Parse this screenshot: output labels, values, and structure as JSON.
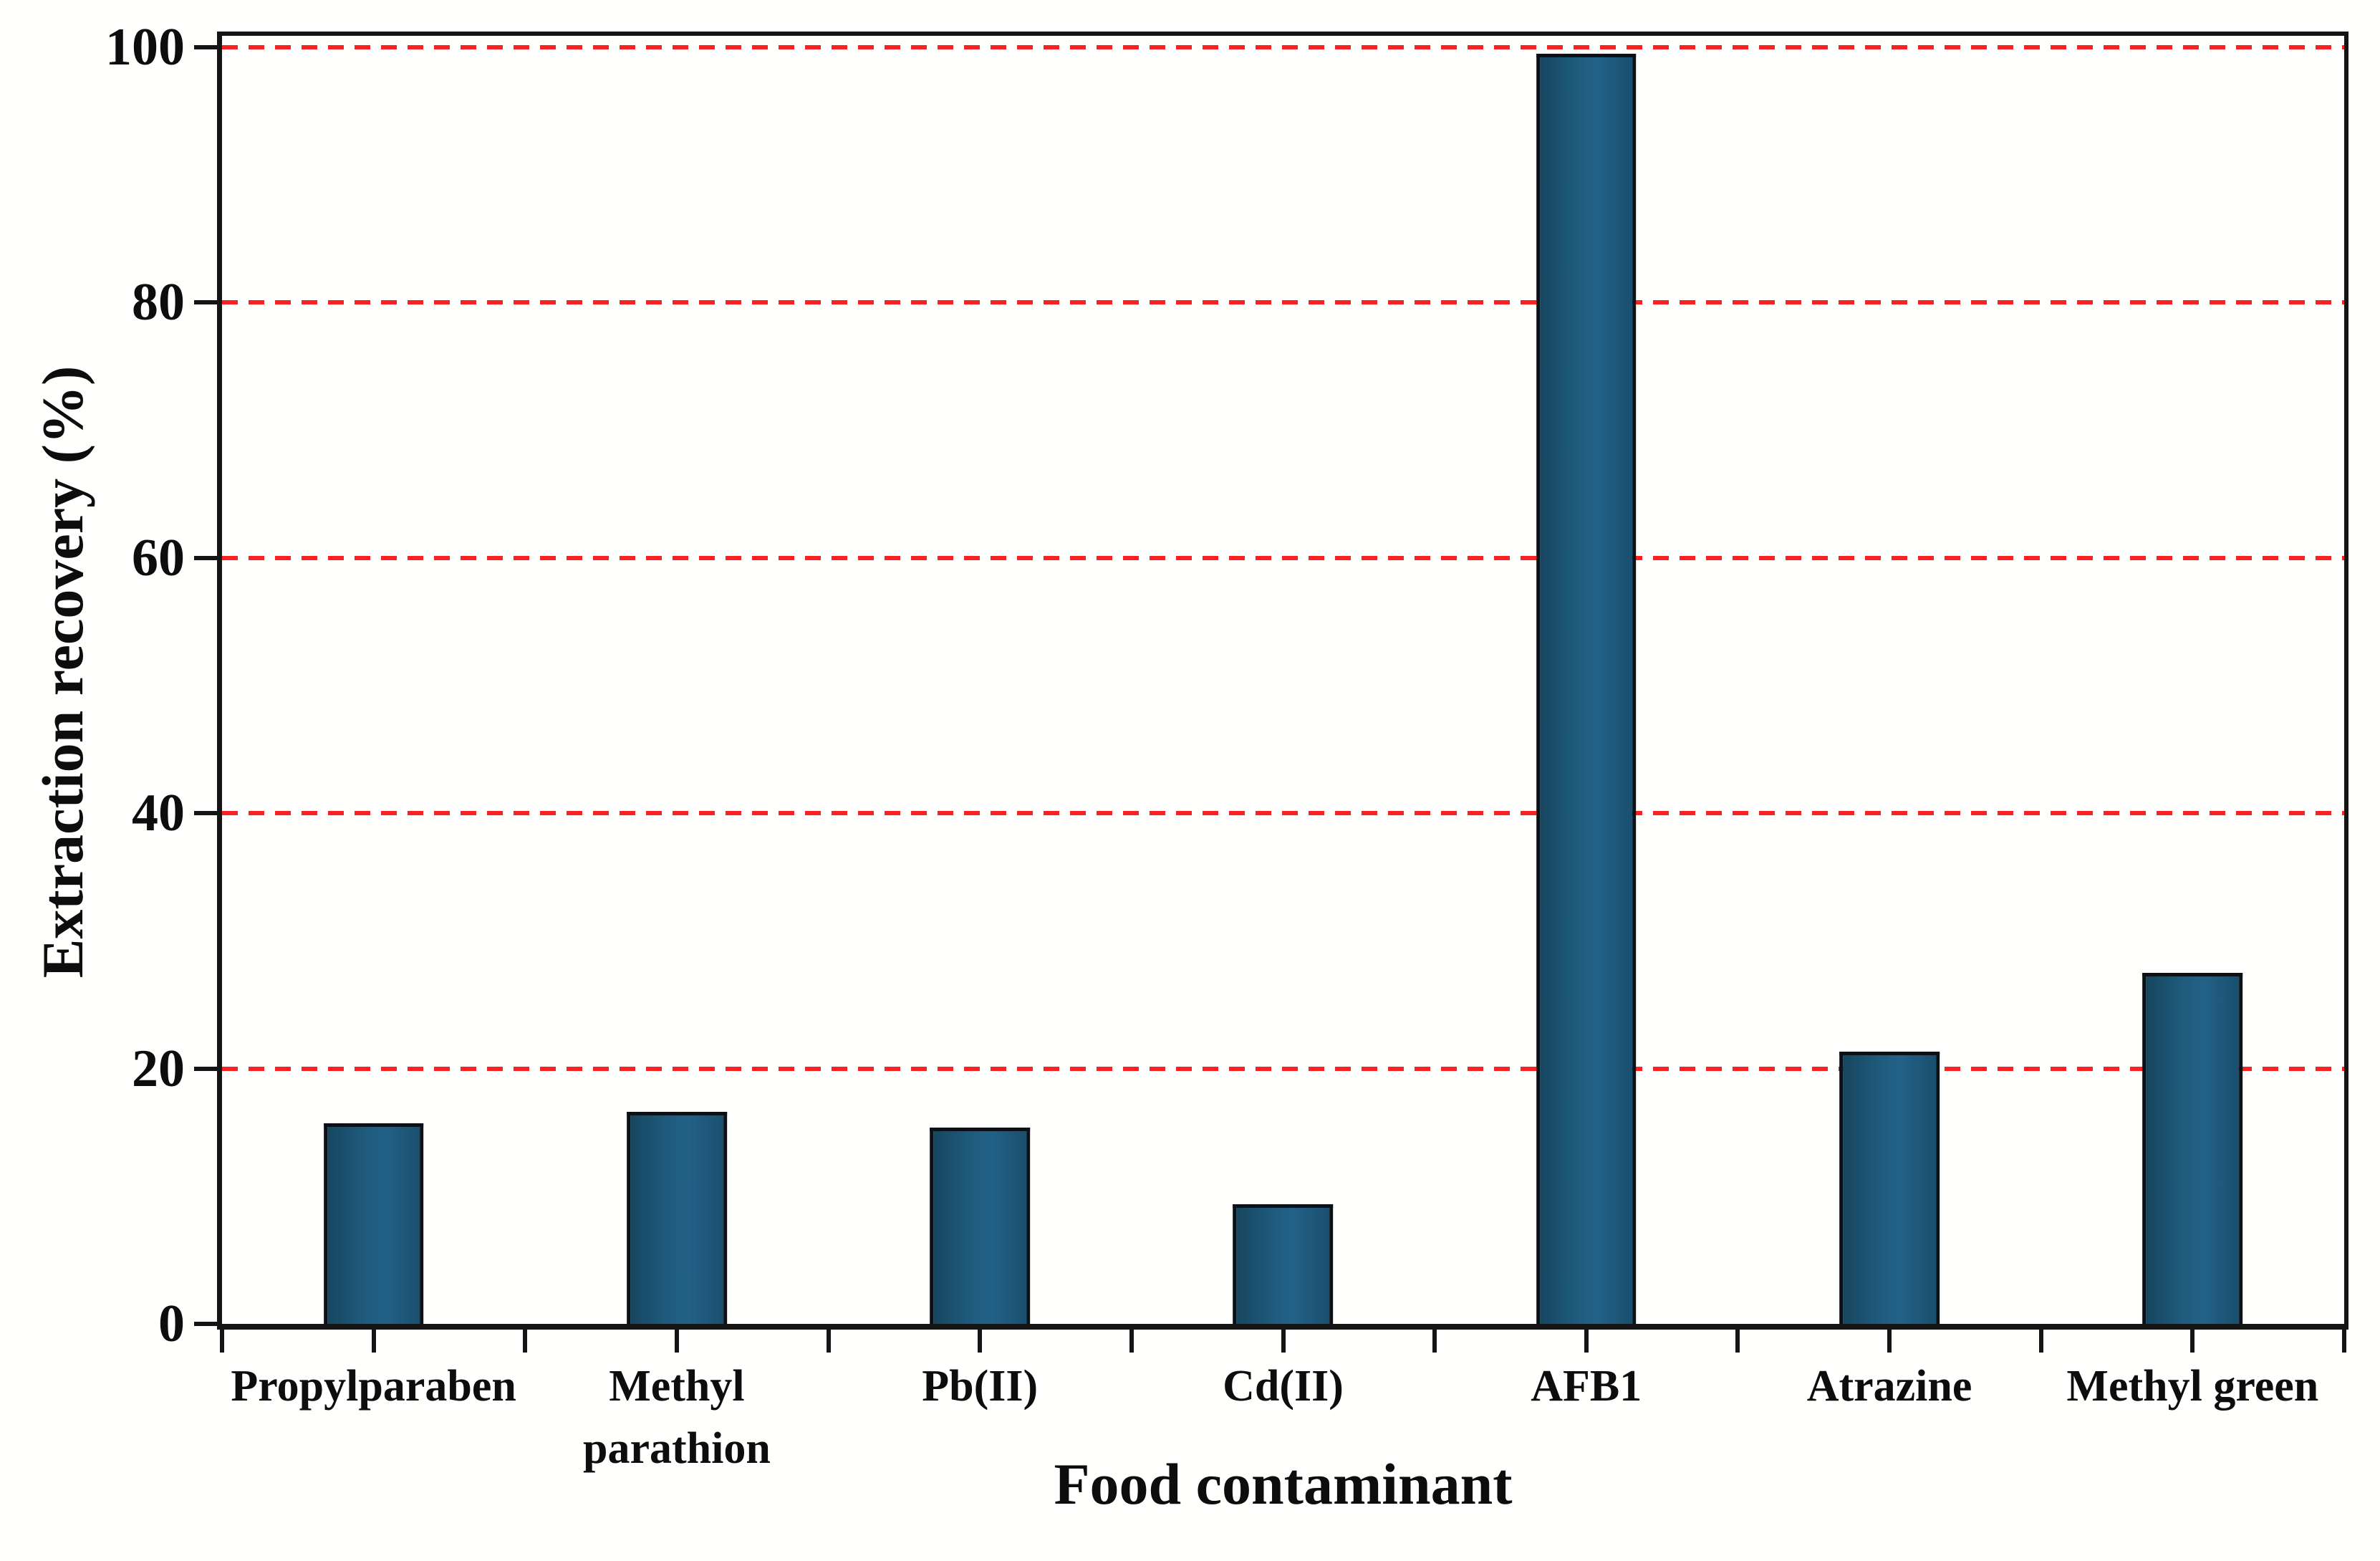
{
  "chart_data": {
    "type": "bar",
    "title": "",
    "categories": [
      "Propylparaben",
      "Methyl parathion",
      "Pb(II)",
      "Cd(II)",
      "AFB1",
      "Atrazine",
      "Methyl green"
    ],
    "values": [
      15.7,
      16.6,
      15.4,
      9.4,
      99.5,
      21.3,
      27.5
    ],
    "xlabel": "Food contaminant",
    "ylabel": "Extraction recovery (%)",
    "ylim": [
      0,
      100.9
    ],
    "yticks": [
      0,
      20,
      40,
      60,
      80,
      100
    ],
    "grid": {
      "values": [
        20,
        40,
        60,
        80,
        100
      ],
      "color": "#f92222",
      "style": "dashed",
      "orientation": "horizontal"
    },
    "legend": "none",
    "bar_color": "#1e5a7c",
    "bar_border_color": "#0b1117",
    "axis_color": "#141414",
    "background_color": "#fffffe",
    "x_minor_ticks": 15
  }
}
